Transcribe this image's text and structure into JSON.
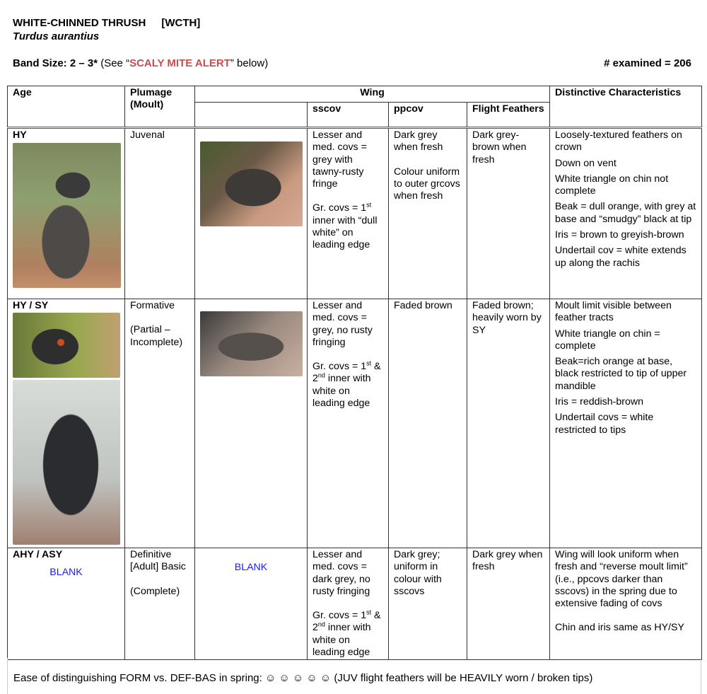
{
  "header": {
    "common_name": "WHITE-CHINNED THRUSH",
    "code": "[WCTH]",
    "scientific_name": "Turdus aurantius",
    "band_label": "Band Size:  2 – 3*",
    "band_pre": " (See “",
    "band_alert": "SCALY MITE ALERT",
    "band_post": "” below)",
    "examined": "# examined = 206",
    "alert_color": "#c0504d"
  },
  "table": {
    "headers": {
      "age": "Age",
      "plumage": "Plumage (Moult)",
      "wing": "Wing",
      "sscov": "sscov",
      "ppcov": "ppcov",
      "flight": "Flight Feathers",
      "distinctive": "Distinctive Characteristics"
    },
    "rows": [
      {
        "age": "HY",
        "plumage": [
          "Juvenal"
        ],
        "sscov": {
          "a": "Lesser and med. covs = grey with tawny-rusty fringe",
          "b_pre": "Gr. covs = 1",
          "b_sup": "st",
          "b_post": " inner with “dull white” on leading edge"
        },
        "ppcov": [
          "Dark grey when fresh",
          "Colour uniform to outer grcovs when fresh"
        ],
        "flight": "Dark grey-brown when fresh",
        "distinctive": [
          "Loosely-textured feathers on crown",
          "Down on vent",
          "White triangle on chin not complete",
          "Beak = dull orange, with grey at base and “smudgy” black at tip",
          "Iris = brown to greyish-brown",
          "Undertail cov = white extends up along the rachis"
        ]
      },
      {
        "age": "HY / SY",
        "plumage": [
          "Formative",
          "(Partial – Incomplete)"
        ],
        "sscov": {
          "a": "Lesser and med. covs = grey, no rusty fringing",
          "b_pre": "Gr. covs = 1",
          "b_sup": "st",
          "b_mid": " & 2",
          "b_sup2": "nd",
          "b_post": " inner with white on leading edge"
        },
        "ppcov": [
          "Faded brown"
        ],
        "flight": "Faded brown; heavily worn by SY",
        "distinctive": [
          "Moult limit visible between feather tracts",
          "White triangle on chin = complete",
          "Beak=rich orange at base, black restricted to tip of upper mandible",
          "Iris = reddish-brown",
          "Undertail covs = white restricted to tips"
        ]
      },
      {
        "age": "AHY / ASY",
        "age_photo": "BLANK",
        "plumage": [
          "Definitive [Adult] Basic",
          "(Complete)"
        ],
        "wing_photo": "BLANK",
        "sscov": {
          "a": "Lesser and med. covs = dark grey, no rusty fringing",
          "b_pre": "Gr. covs = 1",
          "b_sup": "st",
          "b_mid": " & 2",
          "b_sup2": "nd",
          "b_post": " inner with white on leading edge"
        },
        "ppcov": [
          "Dark grey; uniform in colour with sscovs"
        ],
        "flight": "Dark grey when fresh",
        "distinctive": [
          "Wing will look uniform when fresh and “reverse moult limit” (i.e., ppcovs darker than sscovs) in the spring due to extensive fading of covs",
          "Chin and iris same as HY/SY"
        ]
      }
    ]
  },
  "footer": "Ease of distinguishing FORM vs. DEF-BAS in spring:  ☺ ☺ ☺ ☺ ☺ (JUV flight feathers will be HEAVILY worn / broken tips)"
}
